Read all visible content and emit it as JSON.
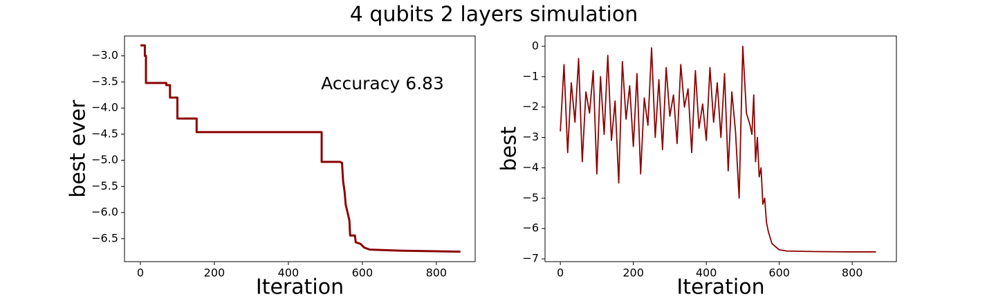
{
  "title": "4 qubits 2 layers simulation",
  "chart_data": [
    {
      "type": "line",
      "xlabel": "Iteration",
      "ylabel": "best ever",
      "annotation": "Accuracy 6.83",
      "xlim": [
        -43,
        905
      ],
      "ylim": [
        -6.94,
        -2.62
      ],
      "xticks": [
        0,
        200,
        400,
        600,
        800
      ],
      "yticks": [
        {
          "value": -3.0,
          "label": "−3.0"
        },
        {
          "value": -3.5,
          "label": "−3.5"
        },
        {
          "value": -4.0,
          "label": "−4.0"
        },
        {
          "value": -4.5,
          "label": "−4.5"
        },
        {
          "value": -5.0,
          "label": "−5.0"
        },
        {
          "value": -5.5,
          "label": "−5.5"
        },
        {
          "value": -6.0,
          "label": "−6.0"
        },
        {
          "value": -6.5,
          "label": "−6.5"
        }
      ],
      "x": [
        0,
        12,
        12,
        15,
        15,
        70,
        70,
        80,
        80,
        100,
        100,
        152,
        152,
        490,
        490,
        540,
        545,
        548,
        552,
        555,
        560,
        565,
        567,
        580,
        582,
        595,
        605,
        620,
        700,
        865
      ],
      "series": [
        {
          "color": "#8b0000",
          "values": [
            -2.8,
            -2.8,
            -3.0,
            -3.0,
            -3.52,
            -3.52,
            -3.56,
            -3.56,
            -3.8,
            -3.8,
            -4.2,
            -4.2,
            -4.46,
            -4.46,
            -5.03,
            -5.03,
            -5.05,
            -5.4,
            -5.6,
            -5.85,
            -6.0,
            -6.15,
            -6.44,
            -6.44,
            -6.57,
            -6.6,
            -6.67,
            -6.71,
            -6.73,
            -6.75
          ]
        }
      ]
    },
    {
      "type": "line",
      "xlabel": "Iteration",
      "ylabel": "best",
      "xlim": [
        -42,
        921
      ],
      "ylim": [
        -7.09,
        0.34
      ],
      "xticks": [
        0,
        200,
        400,
        600,
        800
      ],
      "yticks": [
        {
          "value": 0,
          "label": "0"
        },
        {
          "value": -1,
          "label": "−1"
        },
        {
          "value": -2,
          "label": "−2"
        },
        {
          "value": -3,
          "label": "−3"
        },
        {
          "value": -4,
          "label": "−4"
        },
        {
          "value": -5,
          "label": "−5"
        },
        {
          "value": -6,
          "label": "−6"
        },
        {
          "value": -7,
          "label": "−7"
        }
      ],
      "x": [
        0,
        10,
        20,
        30,
        40,
        50,
        60,
        70,
        80,
        90,
        100,
        110,
        120,
        130,
        140,
        150,
        160,
        170,
        180,
        190,
        200,
        210,
        220,
        230,
        240,
        250,
        260,
        270,
        280,
        290,
        300,
        310,
        320,
        330,
        340,
        350,
        360,
        370,
        380,
        390,
        400,
        410,
        420,
        430,
        440,
        450,
        460,
        470,
        480,
        490,
        500,
        510,
        520,
        525,
        530,
        535,
        540,
        545,
        550,
        555,
        560,
        565,
        570,
        575,
        580,
        590,
        600,
        620,
        700,
        800,
        865
      ],
      "series": [
        {
          "color": "#8b0000",
          "values": [
            -2.8,
            -0.6,
            -3.5,
            -1.2,
            -2.5,
            -0.4,
            -3.8,
            -1.5,
            -2.2,
            -0.8,
            -4.2,
            -1.0,
            -2.9,
            -0.3,
            -3.1,
            -1.8,
            -4.5,
            -0.5,
            -2.4,
            -1.3,
            -3.3,
            -0.9,
            -4.2,
            -1.7,
            -2.6,
            -0.05,
            -3.0,
            -1.1,
            -3.4,
            -0.7,
            -2.3,
            -1.6,
            -3.2,
            -0.6,
            -2.0,
            -1.4,
            -3.5,
            -0.8,
            -2.7,
            -1.9,
            -3.1,
            -0.7,
            -2.5,
            -1.2,
            -3.0,
            -0.9,
            -4.1,
            -1.5,
            -2.8,
            -5.0,
            0.0,
            -2.2,
            -2.6,
            -2.9,
            -1.6,
            -3.8,
            -3.0,
            -4.3,
            -4.0,
            -5.2,
            -5.0,
            -5.8,
            -6.1,
            -6.3,
            -6.5,
            -6.6,
            -6.7,
            -6.74,
            -6.76,
            -6.77,
            -6.77
          ]
        }
      ]
    }
  ]
}
